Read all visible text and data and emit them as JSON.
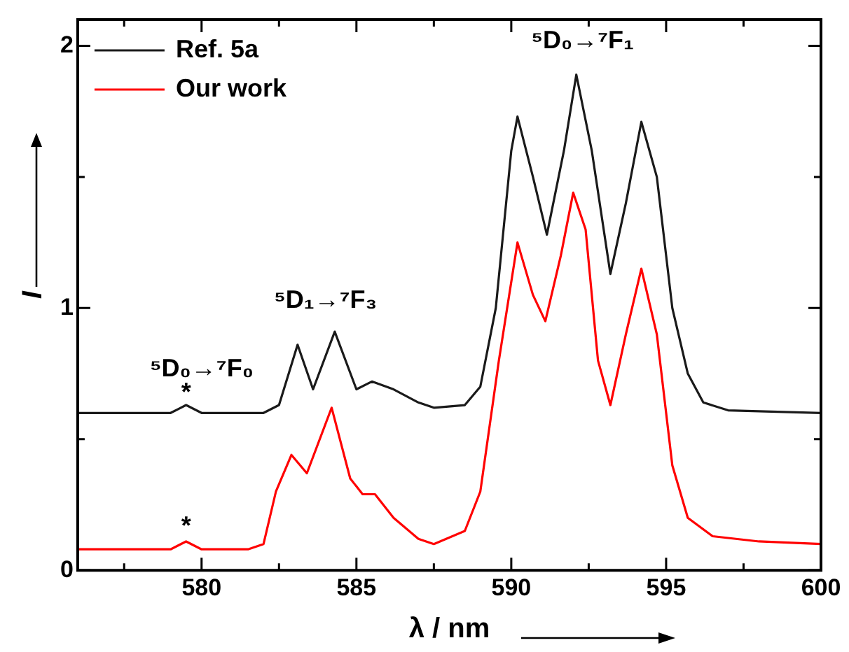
{
  "chart_data": {
    "type": "line",
    "xlabel": "λ / nm",
    "ylabel": "I",
    "xlim": [
      576,
      600
    ],
    "xticks": [
      {
        "value": 577.5,
        "label": null
      },
      580,
      {
        "value": 582.5,
        "label": null
      },
      585,
      {
        "value": 587.5,
        "label": null
      },
      590,
      {
        "value": 592.5,
        "label": null
      },
      595,
      {
        "value": 597.5,
        "label": null
      },
      600
    ],
    "ylim": [
      0,
      2.1
    ],
    "yticks": [
      0,
      {
        "value": 0.5,
        "label": null
      },
      1,
      {
        "value": 1.5,
        "label": null
      },
      2
    ],
    "legend": "top left",
    "series": [
      {
        "name": "Ref. 5a",
        "color": "#1a1a1a",
        "x": [
          576,
          579,
          579.5,
          580,
          582,
          582.5,
          583.1,
          583.6,
          584.3,
          585,
          585.5,
          586.2,
          587,
          587.5,
          588.5,
          589,
          589.5,
          590,
          590.2,
          590.7,
          591.15,
          591.7,
          592.1,
          592.6,
          593.2,
          593.7,
          594.2,
          594.7,
          595.2,
          595.7,
          596.2,
          597,
          600
        ],
        "values": [
          0.6,
          0.6,
          0.63,
          0.6,
          0.6,
          0.63,
          0.86,
          0.69,
          0.91,
          0.69,
          0.72,
          0.69,
          0.64,
          0.62,
          0.63,
          0.7,
          1.0,
          1.6,
          1.73,
          1.5,
          1.28,
          1.6,
          1.89,
          1.6,
          1.13,
          1.4,
          1.71,
          1.5,
          1.0,
          0.75,
          0.64,
          0.61,
          0.6
        ]
      },
      {
        "name": "Our work",
        "color": "#ff0000",
        "x": [
          576,
          579,
          579.5,
          580,
          581.5,
          582,
          582.4,
          582.9,
          583.4,
          584.2,
          584.8,
          585.2,
          585.6,
          586.2,
          587,
          587.5,
          588.5,
          589,
          589.6,
          590.2,
          590.7,
          591.1,
          591.6,
          592.0,
          592.4,
          592.8,
          593.2,
          593.7,
          594.2,
          594.7,
          595.2,
          595.7,
          596.5,
          598,
          600
        ],
        "values": [
          0.08,
          0.08,
          0.11,
          0.08,
          0.08,
          0.1,
          0.3,
          0.44,
          0.37,
          0.62,
          0.35,
          0.29,
          0.29,
          0.2,
          0.12,
          0.1,
          0.15,
          0.3,
          0.8,
          1.25,
          1.05,
          0.95,
          1.2,
          1.44,
          1.3,
          0.8,
          0.63,
          0.9,
          1.15,
          0.9,
          0.4,
          0.2,
          0.13,
          0.11,
          0.1
        ]
      }
    ],
    "annotations": [
      "⁵D₀→⁷F₀",
      {
        "text": "*",
        "x": 579.5,
        "y": 0.65
      },
      "⁵D₁→⁷F₃",
      "⁵D₀→⁷F₁",
      {
        "text": "*",
        "x": 579.5,
        "y": 0.14
      }
    ]
  }
}
